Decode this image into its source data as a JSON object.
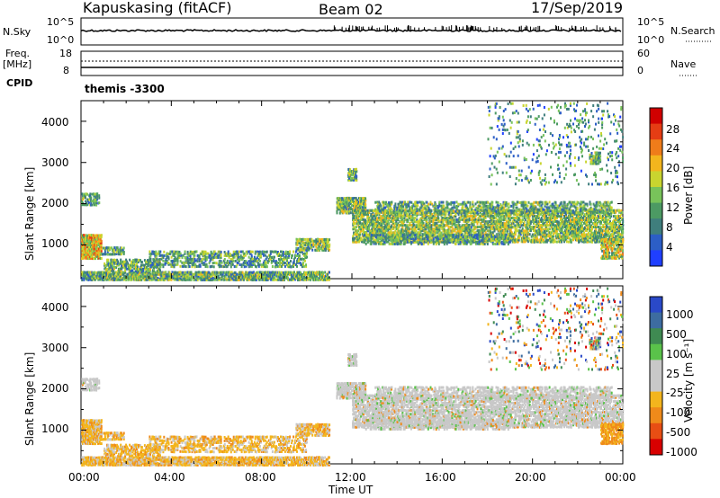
{
  "header": {
    "station": "Kapuskasing (fitACF)",
    "beam": "Beam 02",
    "date": "17/Sep/2019"
  },
  "strip_panels": {
    "nsky": {
      "label": "N.Sky",
      "ticks_left": [
        "10^5",
        "10^0"
      ],
      "ticks_right": [
        "10^5",
        "10^0"
      ],
      "right_label": "N.Search"
    },
    "freq": {
      "label_line1": "Freq.",
      "label_line2": "[MHz]",
      "ticks_left": [
        "18",
        "8"
      ],
      "ticks_right": [
        "60",
        "0"
      ],
      "right_label": "Nave"
    },
    "cpid": {
      "label": "CPID",
      "program": "themis -3300"
    }
  },
  "chart_data": [
    {
      "type": "heatmap",
      "name": "power",
      "ylabel": "Slant Range [km]",
      "yticks": [
        "4000",
        "3000",
        "2000",
        "1000"
      ],
      "ylim": [
        180,
        4500
      ],
      "colorbar_label": "Power [dB]",
      "colorbar_ticks": [
        "28",
        "24",
        "20",
        "16",
        "12",
        "8",
        "4"
      ],
      "colorscale": [
        "#1f3fff",
        "#2c5ec6",
        "#3f7e7d",
        "#4c9a63",
        "#78c35a",
        "#c9d52f",
        "#f3b51d",
        "#ef7c1a",
        "#e53d14",
        "#d00000"
      ]
    },
    {
      "type": "heatmap",
      "name": "velocity",
      "ylabel": "Slant Range [km]",
      "yticks": [
        "4000",
        "3000",
        "2000",
        "1000"
      ],
      "ylim": [
        180,
        4500
      ],
      "colorbar_label": "Velocity [m s⁻¹]",
      "colorbar_ticks": [
        "1000",
        "500",
        "100",
        "25",
        "-25",
        "-100",
        "-500",
        "-1000"
      ],
      "colorscale": [
        "#2a49c8",
        "#3d6ca0",
        "#3f8a52",
        "#5ac24a",
        "#c8c8c8",
        "#c8c8c8",
        "#f3b51d",
        "#ef8a1a",
        "#e84e14",
        "#d80000"
      ]
    }
  ],
  "x_axis": {
    "ticks": [
      "00:00",
      "04:00",
      "08:00",
      "12:00",
      "16:00",
      "20:00",
      "00:00"
    ],
    "label": "Time UT"
  }
}
